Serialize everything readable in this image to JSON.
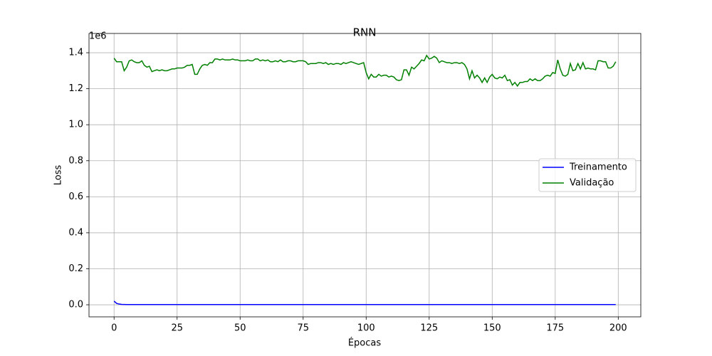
{
  "chart_data": {
    "type": "line",
    "title": "RNN",
    "x_label": "Épocas",
    "y_label": "Loss",
    "y_offset_label": "1e6",
    "x": [
      0,
      1,
      2,
      3,
      4,
      5,
      6,
      7,
      8,
      9,
      10,
      11,
      12,
      13,
      14,
      15,
      16,
      17,
      18,
      19,
      20,
      21,
      22,
      23,
      24,
      25,
      26,
      27,
      28,
      29,
      30,
      31,
      32,
      33,
      34,
      35,
      36,
      37,
      38,
      39,
      40,
      41,
      42,
      43,
      44,
      45,
      46,
      47,
      48,
      49,
      50,
      51,
      52,
      53,
      54,
      55,
      56,
      57,
      58,
      59,
      60,
      61,
      62,
      63,
      64,
      65,
      66,
      67,
      68,
      69,
      70,
      71,
      72,
      73,
      74,
      75,
      76,
      77,
      78,
      79,
      80,
      81,
      82,
      83,
      84,
      85,
      86,
      87,
      88,
      89,
      90,
      91,
      92,
      93,
      94,
      95,
      96,
      97,
      98,
      99,
      100,
      101,
      102,
      103,
      104,
      105,
      106,
      107,
      108,
      109,
      110,
      111,
      112,
      113,
      114,
      115,
      116,
      117,
      118,
      119,
      120,
      121,
      122,
      123,
      124,
      125,
      126,
      127,
      128,
      129,
      130,
      131,
      132,
      133,
      134,
      135,
      136,
      137,
      138,
      139,
      140,
      141,
      142,
      143,
      144,
      145,
      146,
      147,
      148,
      149,
      150,
      151,
      152,
      153,
      154,
      155,
      156,
      157,
      158,
      159,
      160,
      161,
      162,
      163,
      164,
      165,
      166,
      167,
      168,
      169,
      170,
      171,
      172,
      173,
      174,
      175,
      176,
      177,
      178,
      179,
      180,
      181,
      182,
      183,
      184,
      185,
      186,
      187,
      188,
      189,
      190,
      191,
      192,
      193,
      194,
      195,
      196,
      197,
      198,
      199
    ],
    "series": [
      {
        "name": "Treinamento",
        "color": "#0000ff",
        "values": [
          0.02,
          0.008,
          0.004,
          0.002,
          0.0015,
          0.001,
          0.001,
          0.001,
          0.001,
          0.001,
          0.001,
          0.001,
          0.001,
          0.001,
          0.001,
          0.001,
          0.001,
          0.001,
          0.001,
          0.001,
          0.001,
          0.001,
          0.001,
          0.001,
          0.001,
          0.001,
          0.001,
          0.001,
          0.001,
          0.001,
          0.001,
          0.001,
          0.001,
          0.001,
          0.001,
          0.001,
          0.001,
          0.001,
          0.001,
          0.001,
          0.001,
          0.001,
          0.001,
          0.001,
          0.001,
          0.001,
          0.001,
          0.001,
          0.001,
          0.001,
          0.001,
          0.001,
          0.001,
          0.001,
          0.001,
          0.001,
          0.001,
          0.001,
          0.001,
          0.001,
          0.001,
          0.001,
          0.001,
          0.001,
          0.001,
          0.001,
          0.001,
          0.001,
          0.001,
          0.001,
          0.001,
          0.001,
          0.001,
          0.001,
          0.001,
          0.001,
          0.001,
          0.001,
          0.001,
          0.001,
          0.001,
          0.001,
          0.001,
          0.001,
          0.001,
          0.001,
          0.001,
          0.001,
          0.001,
          0.001,
          0.001,
          0.001,
          0.001,
          0.001,
          0.001,
          0.001,
          0.001,
          0.001,
          0.001,
          0.001,
          0.001,
          0.001,
          0.001,
          0.001,
          0.001,
          0.001,
          0.001,
          0.001,
          0.001,
          0.001,
          0.001,
          0.001,
          0.001,
          0.001,
          0.001,
          0.001,
          0.001,
          0.001,
          0.001,
          0.001,
          0.001,
          0.001,
          0.001,
          0.001,
          0.001,
          0.001,
          0.001,
          0.001,
          0.001,
          0.001,
          0.001,
          0.001,
          0.001,
          0.001,
          0.001,
          0.001,
          0.001,
          0.001,
          0.001,
          0.001,
          0.001,
          0.001,
          0.001,
          0.001,
          0.001,
          0.001,
          0.001,
          0.001,
          0.001,
          0.001,
          0.001,
          0.001,
          0.001,
          0.001,
          0.001,
          0.001,
          0.001,
          0.001,
          0.001,
          0.001,
          0.001,
          0.001,
          0.001,
          0.001,
          0.001,
          0.001,
          0.001,
          0.001,
          0.001,
          0.001,
          0.001,
          0.001,
          0.001,
          0.001,
          0.001,
          0.001,
          0.001,
          0.001,
          0.001,
          0.001,
          0.001,
          0.001,
          0.001,
          0.001,
          0.001,
          0.001,
          0.001,
          0.001,
          0.001,
          0.001,
          0.001,
          0.001,
          0.001,
          0.001,
          0.001,
          0.001,
          0.001,
          0.001,
          0.001,
          0.001
        ]
      },
      {
        "name": "Validação",
        "color": "#008000",
        "values": [
          1.37,
          1.35,
          1.35,
          1.35,
          1.3,
          1.32,
          1.355,
          1.36,
          1.35,
          1.345,
          1.345,
          1.355,
          1.33,
          1.32,
          1.325,
          1.295,
          1.3,
          1.305,
          1.3,
          1.305,
          1.3,
          1.3,
          1.305,
          1.31,
          1.31,
          1.315,
          1.315,
          1.315,
          1.32,
          1.33,
          1.33,
          1.335,
          1.28,
          1.28,
          1.31,
          1.33,
          1.335,
          1.33,
          1.345,
          1.345,
          1.365,
          1.365,
          1.36,
          1.365,
          1.36,
          1.36,
          1.36,
          1.365,
          1.36,
          1.36,
          1.355,
          1.355,
          1.355,
          1.36,
          1.355,
          1.355,
          1.365,
          1.365,
          1.355,
          1.36,
          1.355,
          1.36,
          1.35,
          1.35,
          1.355,
          1.35,
          1.36,
          1.35,
          1.35,
          1.355,
          1.355,
          1.35,
          1.35,
          1.355,
          1.355,
          1.355,
          1.35,
          1.335,
          1.34,
          1.34,
          1.34,
          1.345,
          1.345,
          1.34,
          1.345,
          1.335,
          1.34,
          1.335,
          1.34,
          1.34,
          1.335,
          1.345,
          1.34,
          1.345,
          1.35,
          1.345,
          1.34,
          1.335,
          1.34,
          1.345,
          1.29,
          1.255,
          1.28,
          1.265,
          1.265,
          1.28,
          1.27,
          1.275,
          1.275,
          1.265,
          1.27,
          1.265,
          1.25,
          1.245,
          1.25,
          1.305,
          1.305,
          1.275,
          1.32,
          1.31,
          1.325,
          1.34,
          1.36,
          1.355,
          1.385,
          1.365,
          1.37,
          1.38,
          1.37,
          1.345,
          1.355,
          1.35,
          1.345,
          1.345,
          1.34,
          1.345,
          1.345,
          1.34,
          1.345,
          1.335,
          1.31,
          1.255,
          1.3,
          1.26,
          1.275,
          1.26,
          1.235,
          1.26,
          1.235,
          1.265,
          1.28,
          1.26,
          1.255,
          1.265,
          1.26,
          1.275,
          1.245,
          1.25,
          1.22,
          1.235,
          1.215,
          1.235,
          1.235,
          1.24,
          1.24,
          1.255,
          1.245,
          1.255,
          1.245,
          1.245,
          1.255,
          1.27,
          1.275,
          1.27,
          1.29,
          1.285,
          1.36,
          1.31,
          1.275,
          1.27,
          1.28,
          1.34,
          1.3,
          1.305,
          1.34,
          1.31,
          1.345,
          1.31,
          1.315,
          1.31,
          1.31,
          1.305,
          1.355,
          1.355,
          1.35,
          1.35,
          1.315,
          1.315,
          1.325,
          1.35
        ]
      }
    ],
    "xlim": [
      -9.95,
      208.95
    ],
    "xticks": [
      0,
      25,
      50,
      75,
      100,
      125,
      150,
      175,
      200
    ],
    "ylim": [
      -0.067,
      1.507
    ],
    "yticks": [
      {
        "value": 0,
        "label": "0.0"
      },
      0.2,
      0.4,
      0.6,
      0.8,
      {
        "value": 1,
        "label": "1.0"
      },
      1.2,
      1.4
    ],
    "grid": true,
    "legend": "center right"
  }
}
